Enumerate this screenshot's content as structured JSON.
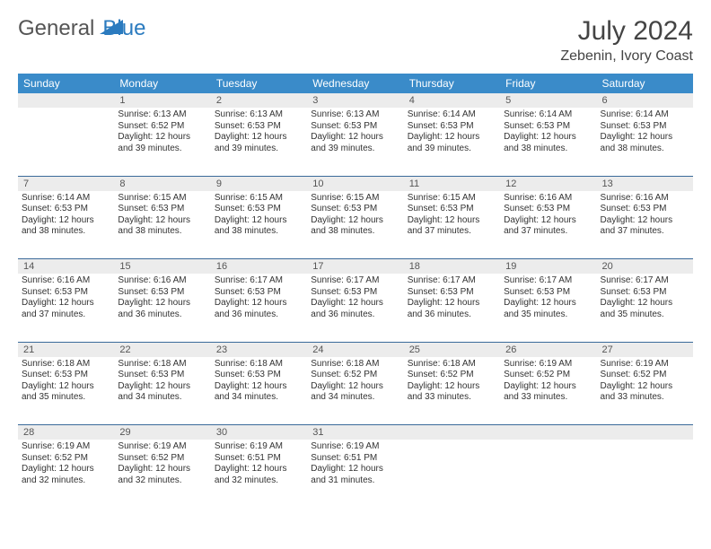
{
  "logo": {
    "text1": "General",
    "text2": "Blue",
    "color1": "#555555",
    "color2": "#2b7bbf"
  },
  "title": "July 2024",
  "location": "Zebenin, Ivory Coast",
  "header_bg": "#3a8bc9",
  "daynum_bg": "#ececec",
  "border_color": "#3a6a9a",
  "weekdays": [
    "Sunday",
    "Monday",
    "Tuesday",
    "Wednesday",
    "Thursday",
    "Friday",
    "Saturday"
  ],
  "weeks": [
    {
      "nums": [
        "",
        "1",
        "2",
        "3",
        "4",
        "5",
        "6"
      ],
      "cells": [
        null,
        {
          "sunrise": "6:13 AM",
          "sunset": "6:52 PM",
          "daylight": "12 hours and 39 minutes."
        },
        {
          "sunrise": "6:13 AM",
          "sunset": "6:53 PM",
          "daylight": "12 hours and 39 minutes."
        },
        {
          "sunrise": "6:13 AM",
          "sunset": "6:53 PM",
          "daylight": "12 hours and 39 minutes."
        },
        {
          "sunrise": "6:14 AM",
          "sunset": "6:53 PM",
          "daylight": "12 hours and 39 minutes."
        },
        {
          "sunrise": "6:14 AM",
          "sunset": "6:53 PM",
          "daylight": "12 hours and 38 minutes."
        },
        {
          "sunrise": "6:14 AM",
          "sunset": "6:53 PM",
          "daylight": "12 hours and 38 minutes."
        }
      ]
    },
    {
      "nums": [
        "7",
        "8",
        "9",
        "10",
        "11",
        "12",
        "13"
      ],
      "cells": [
        {
          "sunrise": "6:14 AM",
          "sunset": "6:53 PM",
          "daylight": "12 hours and 38 minutes."
        },
        {
          "sunrise": "6:15 AM",
          "sunset": "6:53 PM",
          "daylight": "12 hours and 38 minutes."
        },
        {
          "sunrise": "6:15 AM",
          "sunset": "6:53 PM",
          "daylight": "12 hours and 38 minutes."
        },
        {
          "sunrise": "6:15 AM",
          "sunset": "6:53 PM",
          "daylight": "12 hours and 38 minutes."
        },
        {
          "sunrise": "6:15 AM",
          "sunset": "6:53 PM",
          "daylight": "12 hours and 37 minutes."
        },
        {
          "sunrise": "6:16 AM",
          "sunset": "6:53 PM",
          "daylight": "12 hours and 37 minutes."
        },
        {
          "sunrise": "6:16 AM",
          "sunset": "6:53 PM",
          "daylight": "12 hours and 37 minutes."
        }
      ]
    },
    {
      "nums": [
        "14",
        "15",
        "16",
        "17",
        "18",
        "19",
        "20"
      ],
      "cells": [
        {
          "sunrise": "6:16 AM",
          "sunset": "6:53 PM",
          "daylight": "12 hours and 37 minutes."
        },
        {
          "sunrise": "6:16 AM",
          "sunset": "6:53 PM",
          "daylight": "12 hours and 36 minutes."
        },
        {
          "sunrise": "6:17 AM",
          "sunset": "6:53 PM",
          "daylight": "12 hours and 36 minutes."
        },
        {
          "sunrise": "6:17 AM",
          "sunset": "6:53 PM",
          "daylight": "12 hours and 36 minutes."
        },
        {
          "sunrise": "6:17 AM",
          "sunset": "6:53 PM",
          "daylight": "12 hours and 36 minutes."
        },
        {
          "sunrise": "6:17 AM",
          "sunset": "6:53 PM",
          "daylight": "12 hours and 35 minutes."
        },
        {
          "sunrise": "6:17 AM",
          "sunset": "6:53 PM",
          "daylight": "12 hours and 35 minutes."
        }
      ]
    },
    {
      "nums": [
        "21",
        "22",
        "23",
        "24",
        "25",
        "26",
        "27"
      ],
      "cells": [
        {
          "sunrise": "6:18 AM",
          "sunset": "6:53 PM",
          "daylight": "12 hours and 35 minutes."
        },
        {
          "sunrise": "6:18 AM",
          "sunset": "6:53 PM",
          "daylight": "12 hours and 34 minutes."
        },
        {
          "sunrise": "6:18 AM",
          "sunset": "6:53 PM",
          "daylight": "12 hours and 34 minutes."
        },
        {
          "sunrise": "6:18 AM",
          "sunset": "6:52 PM",
          "daylight": "12 hours and 34 minutes."
        },
        {
          "sunrise": "6:18 AM",
          "sunset": "6:52 PM",
          "daylight": "12 hours and 33 minutes."
        },
        {
          "sunrise": "6:19 AM",
          "sunset": "6:52 PM",
          "daylight": "12 hours and 33 minutes."
        },
        {
          "sunrise": "6:19 AM",
          "sunset": "6:52 PM",
          "daylight": "12 hours and 33 minutes."
        }
      ]
    },
    {
      "nums": [
        "28",
        "29",
        "30",
        "31",
        "",
        "",
        ""
      ],
      "cells": [
        {
          "sunrise": "6:19 AM",
          "sunset": "6:52 PM",
          "daylight": "12 hours and 32 minutes."
        },
        {
          "sunrise": "6:19 AM",
          "sunset": "6:52 PM",
          "daylight": "12 hours and 32 minutes."
        },
        {
          "sunrise": "6:19 AM",
          "sunset": "6:51 PM",
          "daylight": "12 hours and 32 minutes."
        },
        {
          "sunrise": "6:19 AM",
          "sunset": "6:51 PM",
          "daylight": "12 hours and 31 minutes."
        },
        null,
        null,
        null
      ]
    }
  ],
  "labels": {
    "sunrise": "Sunrise:",
    "sunset": "Sunset:",
    "daylight": "Daylight:"
  }
}
